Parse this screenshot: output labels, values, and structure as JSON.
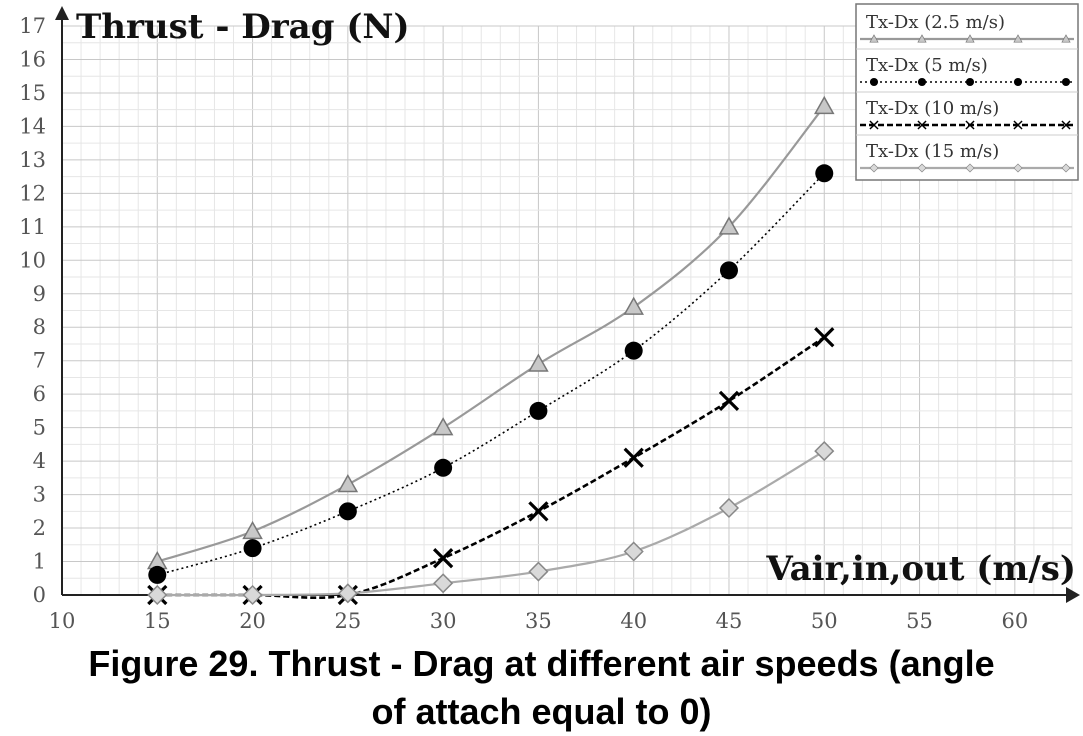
{
  "chart_data": {
    "type": "line",
    "title": "",
    "ylabel": "Thrust - Drag (N)",
    "xlabel": "Vair,in,out (m/s)",
    "xlim": [
      10,
      63
    ],
    "ylim": [
      0,
      17
    ],
    "xticks": [
      10,
      15,
      20,
      25,
      30,
      35,
      40,
      45,
      50,
      55,
      60
    ],
    "yticks": [
      0,
      1,
      2,
      3,
      4,
      5,
      6,
      7,
      8,
      9,
      10,
      11,
      12,
      13,
      14,
      15,
      16,
      17
    ],
    "grid": true,
    "legend_position": "top-right",
    "series": [
      {
        "name": "Tx-Dx (2.5 m/s)",
        "marker": "triangle",
        "line": "solid",
        "color": "#999999",
        "x": [
          15,
          20,
          25,
          30,
          35,
          40,
          45,
          50
        ],
        "y": [
          1.0,
          1.9,
          3.3,
          5.0,
          6.9,
          8.6,
          11.0,
          14.6
        ]
      },
      {
        "name": "Tx-Dx (5 m/s)",
        "marker": "circle",
        "line": "dotted",
        "color": "#000000",
        "x": [
          15,
          20,
          25,
          30,
          35,
          40,
          45,
          50
        ],
        "y": [
          0.6,
          1.4,
          2.5,
          3.8,
          5.5,
          7.3,
          9.7,
          12.6
        ]
      },
      {
        "name": "Tx-Dx (10 m/s)",
        "marker": "cross",
        "line": "dashed",
        "color": "#111111",
        "x": [
          15,
          20,
          25,
          30,
          35,
          40,
          45,
          50
        ],
        "y": [
          0,
          0,
          0,
          1.1,
          2.5,
          4.1,
          5.8,
          7.7
        ]
      },
      {
        "name": "Tx-Dx (15 m/s)",
        "marker": "diamond",
        "line": "solid",
        "color": "#aaaaaa",
        "x": [
          15,
          20,
          25,
          30,
          35,
          40,
          45,
          50
        ],
        "y": [
          0,
          0,
          0.05,
          0.35,
          0.7,
          1.3,
          2.6,
          4.3
        ]
      }
    ]
  },
  "caption": {
    "line1": "Figure 29. Thrust - Drag at different air speeds (angle",
    "line2": "of attach equal to 0)"
  }
}
